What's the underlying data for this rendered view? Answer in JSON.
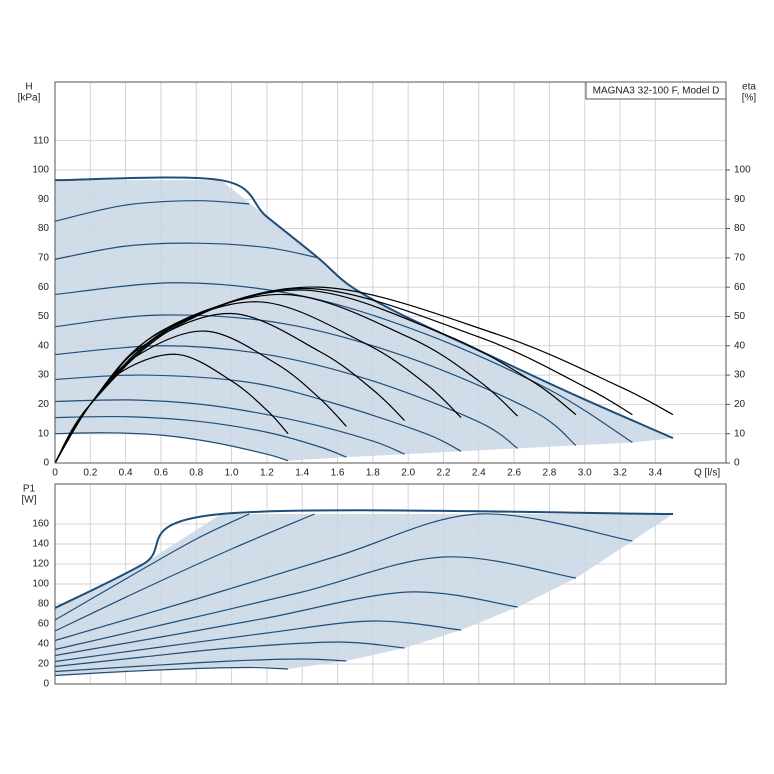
{
  "chart_data": [
    {
      "type": "line",
      "title": "MAGNA3 32-100 F, Model D",
      "y_label": [
        "H",
        "[kPa]"
      ],
      "y2_label": [
        "eta",
        "[%]"
      ],
      "x_label": "Q [l/s]",
      "xlim": [
        0,
        3.8
      ],
      "ylim": [
        0,
        130
      ],
      "y2lim": [
        0,
        130
      ],
      "grid": true,
      "xticks": [
        0,
        0.2,
        0.4,
        0.6,
        0.8,
        {
          "value": 1,
          "label": "1.0"
        },
        1.2,
        1.4,
        1.6,
        1.8,
        {
          "value": 2,
          "label": "2.0"
        },
        2.2,
        2.4,
        2.6,
        2.8,
        {
          "value": 3,
          "label": "3.0"
        },
        3.2,
        3.4
      ],
      "yticks": [
        0,
        10,
        20,
        30,
        40,
        50,
        60,
        70,
        80,
        90,
        100,
        110
      ],
      "y2ticks": [
        0,
        10,
        20,
        30,
        40,
        50,
        60,
        70,
        80,
        90,
        100
      ],
      "series": [
        {
          "kind": "area",
          "color": "#c9d6e5",
          "x": [
            0,
            0.94,
            1.2,
            1.49,
            1.67,
            1.95,
            2.4,
            2.95,
            3.5,
            3.27,
            2.95,
            2.62,
            2.3,
            1.98,
            1.65,
            1.32,
            1.2,
            0.9,
            0.6,
            0.3,
            0
          ],
          "values": [
            96.5,
            96.5,
            84,
            70,
            60.5,
            51,
            38.4,
            23,
            8.5,
            7,
            6,
            5,
            4,
            3,
            2,
            0.8,
            3,
            7,
            9.5,
            10.3,
            10
          ]
        },
        {
          "kind": "line",
          "color": "#1f4e79",
          "width": 2,
          "x": [
            0,
            0.94,
            1.2,
            1.49,
            1.67,
            1.95,
            2.4,
            2.95,
            3.5
          ],
          "values": [
            96.5,
            96.5,
            84,
            70,
            60.5,
            51,
            38.4,
            23,
            8.5
          ]
        },
        {
          "kind": "line",
          "color": "#1f4e79",
          "x": [
            0,
            0.3,
            0.6,
            0.9,
            1.2,
            1.32
          ],
          "values": [
            10,
            10.3,
            9.5,
            7,
            3,
            0.8
          ]
        },
        {
          "kind": "line",
          "color": "#1f4e79",
          "x": [
            0,
            0.4,
            0.8,
            1.2,
            1.5,
            1.65
          ],
          "values": [
            15.5,
            15.8,
            14.3,
            10.5,
            5.5,
            2
          ]
        },
        {
          "kind": "line",
          "color": "#1f4e79",
          "x": [
            0,
            0.45,
            0.9,
            1.4,
            1.8,
            1.98
          ],
          "values": [
            21,
            21.5,
            19.5,
            14,
            7.5,
            3
          ]
        },
        {
          "kind": "line",
          "color": "#1f4e79",
          "x": [
            0,
            0.5,
            1.1,
            1.6,
            2.1,
            2.3
          ],
          "values": [
            28.5,
            30,
            27.5,
            20,
            10,
            4
          ]
        },
        {
          "kind": "line",
          "color": "#1f4e79",
          "x": [
            0,
            0.6,
            1.2,
            1.8,
            2.4,
            2.62
          ],
          "values": [
            37,
            40,
            37,
            28,
            14,
            5
          ]
        },
        {
          "kind": "line",
          "color": "#1f4e79",
          "x": [
            0,
            0.6,
            1.3,
            2.0,
            2.7,
            2.95
          ],
          "values": [
            46.5,
            50.5,
            47.5,
            36,
            18,
            6
          ]
        },
        {
          "kind": "line",
          "color": "#1f4e79",
          "x": [
            0,
            0.7,
            1.4,
            2.1,
            2.8,
            3.27
          ],
          "values": [
            57.5,
            61.5,
            57,
            44,
            25,
            7
          ]
        },
        {
          "kind": "line",
          "color": "#1f4e79",
          "x": [
            0,
            0.4,
            0.8,
            1.2,
            1.49
          ],
          "values": [
            69.5,
            74,
            75,
            73.5,
            70
          ]
        },
        {
          "kind": "line",
          "color": "#1f4e79",
          "x": [
            0,
            0.4,
            0.8,
            1.1
          ],
          "values": [
            82.5,
            88,
            89.5,
            88.4
          ]
        },
        {
          "kind": "line",
          "axis": "y2",
          "color": "#000000",
          "x": [
            0,
            0.2,
            0.4,
            0.7,
            1.0,
            1.2,
            1.32
          ],
          "values": [
            0,
            20,
            32,
            37,
            28,
            18,
            10
          ]
        },
        {
          "kind": "line",
          "axis": "y2",
          "color": "#000000",
          "x": [
            0,
            0.2,
            0.45,
            0.85,
            1.25,
            1.5,
            1.65
          ],
          "values": [
            0,
            20,
            36,
            45,
            34,
            22,
            12.5
          ]
        },
        {
          "kind": "line",
          "axis": "y2",
          "color": "#000000",
          "x": [
            0,
            0.2,
            0.5,
            1.0,
            1.5,
            1.8,
            1.98
          ],
          "values": [
            0,
            20,
            40,
            51,
            38,
            25,
            14.5
          ]
        },
        {
          "kind": "line",
          "axis": "y2",
          "color": "#000000",
          "x": [
            0,
            0.2,
            0.55,
            1.15,
            1.75,
            2.1,
            2.3
          ],
          "values": [
            0,
            20,
            43,
            55,
            41,
            27,
            15.5
          ]
        },
        {
          "kind": "line",
          "axis": "y2",
          "color": "#000000",
          "x": [
            0,
            0.2,
            0.6,
            1.3,
            2.0,
            2.4,
            2.62
          ],
          "values": [
            0,
            20,
            45,
            57.5,
            43,
            28,
            16
          ]
        },
        {
          "kind": "line",
          "axis": "y2",
          "color": "#000000",
          "x": [
            0,
            0.2,
            0.65,
            1.4,
            2.2,
            2.7,
            2.95
          ],
          "values": [
            0,
            20,
            46,
            59,
            44,
            28,
            16.5
          ]
        },
        {
          "kind": "line",
          "axis": "y2",
          "color": "#000000",
          "x": [
            0,
            0.2,
            0.7,
            1.45,
            2.4,
            3.0,
            3.27
          ],
          "values": [
            0,
            20,
            47,
            59.5,
            43,
            26,
            16.5
          ]
        },
        {
          "kind": "line",
          "axis": "y2",
          "color": "#000000",
          "x": [
            0,
            0.2,
            0.7,
            1.5,
            2.5,
            3.2,
            3.5
          ],
          "values": [
            0,
            20,
            47.5,
            60,
            44,
            26,
            16.5
          ]
        }
      ]
    },
    {
      "type": "line",
      "y_label": [
        "P1",
        "[W]"
      ],
      "xlim": [
        0,
        3.8
      ],
      "ylim": [
        0,
        200
      ],
      "grid": true,
      "xtick_labels": false,
      "xticks": [
        0,
        0.2,
        0.4,
        0.6,
        0.8,
        1,
        1.2,
        1.4,
        1.6,
        1.8,
        2,
        2.2,
        2.4,
        2.6,
        2.8,
        3,
        3.2,
        3.4
      ],
      "yticks": [
        0,
        20,
        40,
        60,
        80,
        100,
        120,
        140,
        160
      ],
      "series": [
        {
          "kind": "area",
          "color": "#c9d6e5",
          "x": [
            0,
            0.5,
            0.94,
            3.5,
            3.27,
            2.95,
            2.62,
            2.3,
            1.98,
            1.65,
            1.32,
            1.1,
            0.8,
            0.4,
            0
          ],
          "values": [
            76,
            120,
            170,
            170,
            143,
            106,
            77,
            54,
            36,
            23,
            15,
            16.5,
            15.5,
            12.5,
            8.5
          ]
        },
        {
          "kind": "line",
          "color": "#1f4e79",
          "width": 2,
          "x": [
            0,
            0.5,
            0.94,
            3.5
          ],
          "values": [
            76,
            120,
            170,
            170
          ]
        },
        {
          "kind": "line",
          "color": "#1f4e79",
          "x": [
            0,
            0.4,
            0.8,
            1.1,
            1.32
          ],
          "values": [
            8.5,
            12.5,
            15.5,
            16.5,
            15
          ]
        },
        {
          "kind": "line",
          "color": "#1f4e79",
          "x": [
            0,
            0.5,
            1.0,
            1.4,
            1.65
          ],
          "values": [
            12.5,
            18,
            23,
            25,
            23
          ]
        },
        {
          "kind": "line",
          "color": "#1f4e79",
          "x": [
            0,
            0.5,
            1.0,
            1.6,
            1.98
          ],
          "values": [
            17.5,
            27,
            36,
            42,
            36
          ]
        },
        {
          "kind": "line",
          "color": "#1f4e79",
          "x": [
            0,
            0.6,
            1.2,
            1.8,
            2.3
          ],
          "values": [
            22.5,
            37,
            51,
            63,
            54
          ]
        },
        {
          "kind": "line",
          "color": "#1f4e79",
          "x": [
            0,
            0.6,
            1.2,
            2.0,
            2.62
          ],
          "values": [
            28.5,
            47,
            66,
            92,
            77
          ]
        },
        {
          "kind": "line",
          "color": "#1f4e79",
          "x": [
            0,
            0.7,
            1.4,
            2.2,
            2.95
          ],
          "values": [
            34.5,
            63,
            92,
            127,
            106
          ]
        },
        {
          "kind": "line",
          "color": "#1f4e79",
          "x": [
            0,
            0.8,
            1.6,
            2.4,
            3.27
          ],
          "values": [
            43.5,
            85,
            128,
            170,
            143
          ]
        },
        {
          "kind": "line",
          "color": "#1f4e79",
          "x": [
            0,
            0.5,
            1.0,
            1.47
          ],
          "values": [
            53,
            95,
            135,
            170
          ]
        },
        {
          "kind": "line",
          "color": "#1f4e79",
          "x": [
            0,
            0.4,
            0.8,
            1.1
          ],
          "values": [
            64,
            105,
            145,
            170
          ]
        }
      ]
    }
  ]
}
